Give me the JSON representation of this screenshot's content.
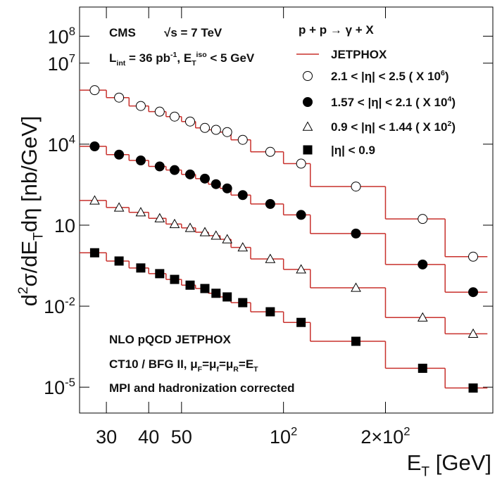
{
  "chart_data": {
    "type": "scatter",
    "log_x": true,
    "log_y": true,
    "xlabel": "E_{T} [GeV]",
    "ylabel": "d^{2}σ/dE_{T}dη [nb/GeV]",
    "xlim": [
      25,
      415
    ],
    "ylim": [
      1.1e-06,
      1200000000.0
    ],
    "xticks": [
      30,
      40,
      50,
      {
        "value": 100,
        "label": "10^{2}"
      },
      {
        "value": 200,
        "label": "2×10^{2}"
      }
    ],
    "yticks": [
      {
        "value": 1e-05,
        "label": "10^{-5}"
      },
      {
        "value": 0.01,
        "label": "10^{-2}"
      },
      10,
      {
        "value": 10000,
        "label": "10^{4}"
      },
      {
        "value": 10000000,
        "label": "10^{7}"
      },
      {
        "value": 100000000,
        "label": "10^{8}"
      }
    ],
    "annotations": [
      "CMS",
      "√s = 7 TeV",
      "L_{int} = 36 pb^{-1}, E_{T}^{iso} < 5 GeV",
      "NLO pQCD JETPHOX",
      "CT10 / BFG II, μ_{F}=μ_{f}=μ_{R}=E_{T}",
      "MPI and hadronization corrected"
    ],
    "legend_title": "p + p → γ + X",
    "x": [
      27.7,
      32.7,
      37.9,
      43.1,
      47.7,
      53,
      58.6,
      63.2,
      68.2,
      75.8,
      91.4,
      112.7,
      163.6,
      257.5,
      363
    ],
    "series": [
      {
        "name": "2.1 < |η| < 2.5 ( X 10^{6})",
        "color": "#000000",
        "marker": "circle-open",
        "values": [
          1000000.0,
          530000.0,
          260000.0,
          160000.0,
          105000.0,
          69000.0,
          40000.0,
          34000.0,
          28000.0,
          14500.0,
          5200.0,
          1900.0,
          270,
          17,
          0.68
        ]
      },
      {
        "name": "1.57 < |η| < 2.1 ( X 10^{4})",
        "color": "#000000",
        "marker": "circle",
        "values": [
          8300,
          4100,
          2500,
          1500,
          1100,
          760,
          530,
          330,
          230,
          130,
          61,
          24,
          4.9,
          0.35,
          0.033
        ]
      },
      {
        "name": "0.9 < |η| < 1.44 ( X 10^{2})",
        "color": "#000000",
        "marker": "triangle-open",
        "values": [
          82,
          45,
          30,
          18,
          11,
          7.9,
          5.5,
          4.1,
          3.0,
          1.5,
          0.56,
          0.23,
          0.048,
          0.0038,
          0.00095
        ]
      },
      {
        "name": "|η| < 0.9",
        "color": "#000000",
        "marker": "square",
        "values": [
          0.95,
          0.47,
          0.26,
          0.16,
          0.098,
          0.06,
          0.045,
          0.03,
          0.022,
          0.0135,
          0.0062,
          0.0025,
          0.0005,
          5e-05,
          9.3e-06
        ]
      }
    ],
    "theory": {
      "name": "JETPHOX",
      "color": "#c8302c",
      "bins": [
        25,
        30,
        35,
        40,
        45,
        50,
        55,
        60,
        65,
        70,
        80,
        100,
        120,
        200,
        300,
        400
      ],
      "values": [
        [
          1000000.0,
          530000.0,
          260000.0,
          160000.0,
          105000.0,
          69000.0,
          40000.0,
          34000.0,
          28000.0,
          14500.0,
          5200.0,
          1900.0,
          270,
          17,
          0.68
        ],
        [
          8300,
          4100,
          2500,
          1500,
          1100,
          760,
          530,
          330,
          230,
          130,
          61,
          24,
          4.9,
          0.35,
          0.033
        ],
        [
          82,
          45,
          30,
          18,
          11,
          7.9,
          5.5,
          4.1,
          3.0,
          1.5,
          0.56,
          0.23,
          0.048,
          0.0038,
          0.00095
        ],
        [
          0.95,
          0.47,
          0.26,
          0.16,
          0.098,
          0.06,
          0.045,
          0.03,
          0.022,
          0.0135,
          0.0062,
          0.0025,
          0.0005,
          5e-05,
          9.3e-06
        ]
      ]
    }
  }
}
